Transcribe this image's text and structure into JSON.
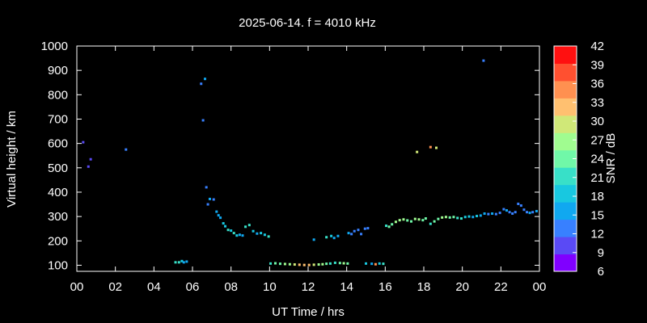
{
  "chart_data": {
    "type": "scatter",
    "title": "2025-06-14. f = 4010 kHz",
    "xlabel": "UT Time / hrs",
    "ylabel": "Virtual height / km",
    "xlim": [
      0,
      24
    ],
    "ylim": [
      75,
      1000
    ],
    "x_ticks": [
      "00",
      "02",
      "04",
      "06",
      "08",
      "10",
      "12",
      "14",
      "16",
      "18",
      "20",
      "22",
      "00"
    ],
    "y_ticks": [
      100,
      200,
      300,
      400,
      500,
      600,
      700,
      800,
      900,
      1000
    ],
    "colorbar": {
      "label": "SNR / dB",
      "min": 6,
      "max": 42,
      "ticks": [
        6,
        9,
        12,
        15,
        18,
        21,
        24,
        27,
        30,
        33,
        36,
        39,
        42
      ],
      "colors": [
        "#8000ff",
        "#5a4af5",
        "#3880ff",
        "#10a8f0",
        "#18c8e0",
        "#38e0c8",
        "#70f8a8",
        "#a0fc90",
        "#d0e878",
        "#ffc070",
        "#ff9050",
        "#ff5030",
        "#ff1010"
      ]
    },
    "grid": false,
    "points": [
      [
        0.33,
        605,
        11
      ],
      [
        0.6,
        505,
        10
      ],
      [
        0.72,
        535,
        11
      ],
      [
        2.55,
        575,
        12
      ],
      [
        5.12,
        112,
        20
      ],
      [
        5.3,
        112,
        21
      ],
      [
        5.45,
        117,
        19
      ],
      [
        5.55,
        112,
        17
      ],
      [
        5.7,
        115,
        16
      ],
      [
        6.45,
        845,
        13
      ],
      [
        6.55,
        695,
        14
      ],
      [
        6.65,
        865,
        17
      ],
      [
        6.72,
        420,
        14
      ],
      [
        6.8,
        350,
        14
      ],
      [
        6.9,
        372,
        15
      ],
      [
        7.1,
        370,
        14
      ],
      [
        7.25,
        320,
        16
      ],
      [
        7.35,
        305,
        17
      ],
      [
        7.45,
        295,
        16
      ],
      [
        7.6,
        272,
        18
      ],
      [
        7.7,
        260,
        19
      ],
      [
        7.85,
        245,
        20
      ],
      [
        8.0,
        242,
        19
      ],
      [
        8.15,
        232,
        21
      ],
      [
        8.3,
        222,
        18
      ],
      [
        8.45,
        225,
        17
      ],
      [
        8.6,
        222,
        15
      ],
      [
        8.75,
        258,
        22
      ],
      [
        8.95,
        265,
        20
      ],
      [
        9.15,
        240,
        18
      ],
      [
        9.35,
        230,
        16
      ],
      [
        9.55,
        232,
        18
      ],
      [
        9.75,
        225,
        19
      ],
      [
        9.95,
        218,
        20
      ],
      [
        10.05,
        107,
        22
      ],
      [
        10.3,
        108,
        23
      ],
      [
        10.55,
        106,
        25
      ],
      [
        10.8,
        105,
        27
      ],
      [
        11.05,
        104,
        28
      ],
      [
        11.3,
        103,
        30
      ],
      [
        11.55,
        102,
        31
      ],
      [
        11.8,
        101,
        33
      ],
      [
        12.05,
        101,
        32
      ],
      [
        12.3,
        102,
        30
      ],
      [
        12.55,
        103,
        28
      ],
      [
        12.75,
        104,
        27
      ],
      [
        12.95,
        106,
        24
      ],
      [
        13.15,
        107,
        22
      ],
      [
        13.4,
        110,
        20
      ],
      [
        13.65,
        109,
        24
      ],
      [
        13.85,
        108,
        26
      ],
      [
        14.05,
        107,
        25
      ],
      [
        12.3,
        205,
        15
      ],
      [
        12.95,
        215,
        21
      ],
      [
        13.2,
        220,
        19
      ],
      [
        13.35,
        212,
        17
      ],
      [
        13.55,
        220,
        15
      ],
      [
        14.1,
        232,
        15
      ],
      [
        14.25,
        228,
        14
      ],
      [
        14.4,
        240,
        13
      ],
      [
        14.6,
        245,
        14
      ],
      [
        14.75,
        228,
        12
      ],
      [
        14.95,
        250,
        13
      ],
      [
        15.1,
        252,
        14
      ],
      [
        15.0,
        107,
        18
      ],
      [
        15.3,
        106,
        16
      ],
      [
        15.5,
        104,
        36
      ],
      [
        15.7,
        107,
        19
      ],
      [
        15.9,
        106,
        22
      ],
      [
        16.05,
        262,
        22
      ],
      [
        16.2,
        258,
        24
      ],
      [
        16.35,
        268,
        25
      ],
      [
        16.55,
        278,
        26
      ],
      [
        16.75,
        285,
        27
      ],
      [
        16.95,
        288,
        26
      ],
      [
        17.15,
        284,
        24
      ],
      [
        17.35,
        280,
        23
      ],
      [
        17.55,
        290,
        26
      ],
      [
        17.75,
        288,
        27
      ],
      [
        17.95,
        285,
        25
      ],
      [
        18.1,
        292,
        24
      ],
      [
        18.35,
        270,
        22
      ],
      [
        18.55,
        280,
        24
      ],
      [
        18.75,
        290,
        25
      ],
      [
        18.95,
        296,
        27
      ],
      [
        19.15,
        298,
        26
      ],
      [
        19.35,
        296,
        24
      ],
      [
        19.55,
        298,
        23
      ],
      [
        19.75,
        294,
        22
      ],
      [
        19.95,
        292,
        20
      ],
      [
        20.15,
        298,
        19
      ],
      [
        20.35,
        300,
        18
      ],
      [
        20.55,
        298,
        17
      ],
      [
        20.75,
        302,
        18
      ],
      [
        20.95,
        304,
        17
      ],
      [
        21.15,
        312,
        15
      ],
      [
        21.35,
        310,
        14
      ],
      [
        21.55,
        312,
        15
      ],
      [
        21.75,
        310,
        14
      ],
      [
        21.95,
        315,
        13
      ],
      [
        22.15,
        330,
        14
      ],
      [
        22.3,
        325,
        15
      ],
      [
        22.45,
        318,
        14
      ],
      [
        22.6,
        312,
        13
      ],
      [
        22.75,
        318,
        12
      ],
      [
        22.9,
        352,
        13
      ],
      [
        23.05,
        345,
        12
      ],
      [
        23.2,
        328,
        14
      ],
      [
        23.35,
        318,
        13
      ],
      [
        23.5,
        315,
        15
      ],
      [
        23.65,
        318,
        14
      ],
      [
        23.85,
        322,
        15
      ],
      [
        17.65,
        565,
        30
      ],
      [
        18.35,
        585,
        36
      ],
      [
        18.65,
        582,
        30
      ],
      [
        21.1,
        940,
        14
      ]
    ]
  }
}
